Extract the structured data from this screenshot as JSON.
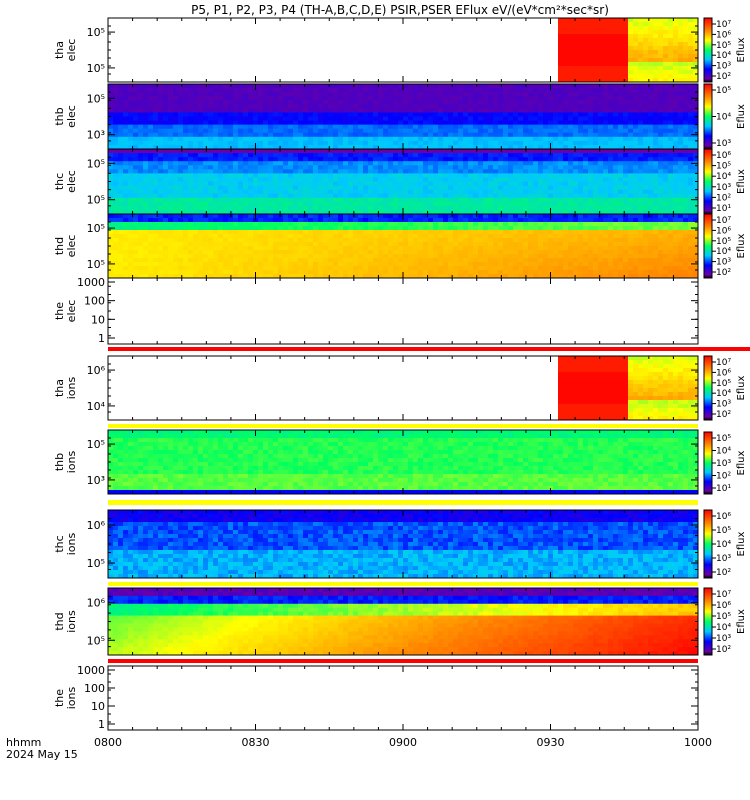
{
  "title": "P5, P1, P2, P3, P4 (TH-A,B,C,D,E) PSIR,PSER EFlux eV/(eV*cm²*sec*sr)",
  "footer": {
    "time_label": "hhmm",
    "date_label": "2024 May 15"
  },
  "colorbar_label": "Eflux",
  "colors": {
    "red_bar": "#ff0000",
    "yellow_bar": "#ffff00"
  },
  "chart_data": {
    "type": "heatmap",
    "x_axis": {
      "ticks": [
        "0800",
        "0830",
        "0900",
        "0930",
        "1000"
      ],
      "range": [
        "0800",
        "1000"
      ]
    },
    "panels": [
      {
        "label_top": "tha",
        "label_bottom": "elec",
        "kind": "spectrogram",
        "yticks": [
          "10⁵",
          "10⁵"
        ],
        "cbar_ticks": [
          "10⁷",
          "10⁶",
          "10⁵",
          "10⁴",
          "10³",
          "10²"
        ],
        "pattern": "late-burst"
      },
      {
        "label_top": "thb",
        "label_bottom": "elec",
        "kind": "spectrogram",
        "yticks": [
          "10⁵",
          "10³"
        ],
        "cbar_ticks": [
          "10⁵",
          "10⁴",
          "10³"
        ],
        "pattern": "purple-blue"
      },
      {
        "label_top": "thc",
        "label_bottom": "elec",
        "kind": "spectrogram",
        "yticks": [
          "10⁵",
          "10⁵"
        ],
        "cbar_ticks": [
          "10⁶",
          "10⁵",
          "10⁴",
          "10³",
          "10²",
          "10¹"
        ],
        "pattern": "blue-cyan"
      },
      {
        "label_top": "thd",
        "label_bottom": "elec",
        "kind": "spectrogram",
        "yticks": [
          "10⁵",
          "10⁵"
        ],
        "cbar_ticks": [
          "10⁷",
          "10⁶",
          "10⁵",
          "10⁴",
          "10³",
          "10²"
        ],
        "pattern": "yellow-orange"
      },
      {
        "label_top": "the",
        "label_bottom": "elec",
        "kind": "empty",
        "yticks": [
          "1000",
          "100",
          "10",
          "1"
        ]
      },
      {
        "label_top": "tha",
        "label_bottom": "ions",
        "kind": "spectrogram",
        "yticks": [
          "10⁶",
          "10⁴"
        ],
        "cbar_ticks": [
          "10⁷",
          "10⁶",
          "10⁵",
          "10⁴",
          "10³",
          "10²"
        ],
        "pattern": "late-burst"
      },
      {
        "label_top": "thb",
        "label_bottom": "ions",
        "kind": "spectrogram",
        "yticks": [
          "10⁵",
          "10³"
        ],
        "cbar_ticks": [
          "10⁵",
          "10⁴",
          "10³",
          "10²",
          "10¹"
        ],
        "pattern": "green"
      },
      {
        "label_top": "thc",
        "label_bottom": "ions",
        "kind": "spectrogram",
        "yticks": [
          "10⁶",
          "10⁵"
        ],
        "cbar_ticks": [
          "10⁶",
          "10⁵",
          "10⁴",
          "10³",
          "10²"
        ],
        "pattern": "blue"
      },
      {
        "label_top": "thd",
        "label_bottom": "ions",
        "kind": "spectrogram",
        "yticks": [
          "10⁶",
          "10⁵"
        ],
        "cbar_ticks": [
          "10⁷",
          "10⁶",
          "10⁵",
          "10⁴",
          "10³",
          "10²"
        ],
        "pattern": "green-red"
      },
      {
        "label_top": "the",
        "label_bottom": "ions",
        "kind": "empty",
        "yticks": [
          "1000",
          "100",
          "10",
          "1"
        ]
      }
    ]
  }
}
